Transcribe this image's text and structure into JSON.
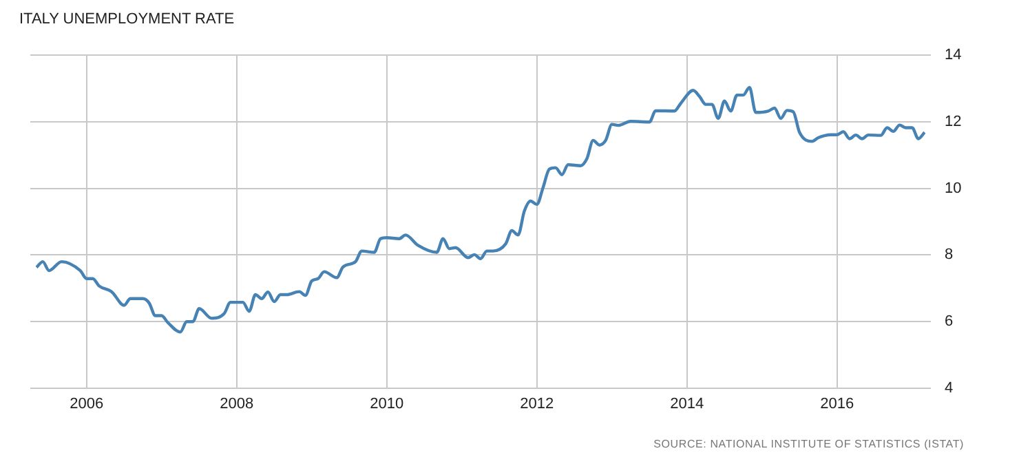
{
  "chart_data": {
    "type": "line",
    "title": "ITALY UNEMPLOYMENT RATE",
    "annotations": [
      "SOURCE: NATIONAL INSTITUTE OF STATISTICS (ISTAT)"
    ],
    "x": [
      "2005-05",
      "2005-06",
      "2005-07",
      "2005-09",
      "2005-12",
      "2006-01",
      "2006-02",
      "2006-03",
      "2006-05",
      "2006-07",
      "2006-08",
      "2006-10",
      "2006-11",
      "2006-12",
      "2007-01",
      "2007-02",
      "2007-04",
      "2007-05",
      "2007-06",
      "2007-07",
      "2007-09",
      "2007-11",
      "2007-12",
      "2008-02",
      "2008-03",
      "2008-04",
      "2008-05",
      "2008-06",
      "2008-07",
      "2008-08",
      "2008-09",
      "2008-11",
      "2008-12",
      "2009-01",
      "2009-02",
      "2009-03",
      "2009-05",
      "2009-06",
      "2009-08",
      "2009-09",
      "2009-11",
      "2009-12",
      "2010-01",
      "2010-03",
      "2010-04",
      "2010-06",
      "2010-09",
      "2010-10",
      "2010-11",
      "2010-12",
      "2011-02",
      "2011-03",
      "2011-04",
      "2011-05",
      "2011-06",
      "2011-08",
      "2011-09",
      "2011-10",
      "2011-11",
      "2011-12",
      "2012-01",
      "2012-02",
      "2012-03",
      "2012-04",
      "2012-05",
      "2012-06",
      "2012-08",
      "2012-09",
      "2012-10",
      "2012-11",
      "2012-12",
      "2013-01",
      "2013-02",
      "2013-04",
      "2013-07",
      "2013-08",
      "2013-11",
      "2013-12",
      "2014-02",
      "2014-03",
      "2014-04",
      "2014-05",
      "2014-06",
      "2014-07",
      "2014-08",
      "2014-09",
      "2014-10",
      "2014-11",
      "2014-12",
      "2015-02",
      "2015-03",
      "2015-04",
      "2015-05",
      "2015-06",
      "2015-07",
      "2015-09",
      "2015-10",
      "2015-12",
      "2016-01",
      "2016-02",
      "2016-03",
      "2016-04",
      "2016-05",
      "2016-06",
      "2016-08",
      "2016-09",
      "2016-10",
      "2016-11",
      "2016-12",
      "2017-01",
      "2017-02",
      "2017-03"
    ],
    "values": [
      7.63,
      7.8,
      7.53,
      7.8,
      7.53,
      7.29,
      7.29,
      7.07,
      6.9,
      6.49,
      6.69,
      6.69,
      6.56,
      6.18,
      6.18,
      5.97,
      5.69,
      6.0,
      6.0,
      6.39,
      6.1,
      6.24,
      6.58,
      6.58,
      6.31,
      6.81,
      6.69,
      6.89,
      6.6,
      6.81,
      6.81,
      6.9,
      6.79,
      7.22,
      7.29,
      7.5,
      7.32,
      7.64,
      7.8,
      8.12,
      8.08,
      8.49,
      8.52,
      8.49,
      8.6,
      8.29,
      8.08,
      8.49,
      8.19,
      8.22,
      7.92,
      8.01,
      7.89,
      8.12,
      8.12,
      8.33,
      8.73,
      8.6,
      9.32,
      9.62,
      9.52,
      10.03,
      10.58,
      10.62,
      10.41,
      10.71,
      10.68,
      10.89,
      11.44,
      11.3,
      11.44,
      11.92,
      11.89,
      12.01,
      11.99,
      12.33,
      12.32,
      12.55,
      12.94,
      12.76,
      12.52,
      12.52,
      12.1,
      12.62,
      12.32,
      12.8,
      12.8,
      13.03,
      12.28,
      12.32,
      12.41,
      12.1,
      12.34,
      12.3,
      11.68,
      11.41,
      11.52,
      11.61,
      11.61,
      11.7,
      11.49,
      11.6,
      11.49,
      11.6,
      11.59,
      11.82,
      11.71,
      11.9,
      11.82,
      11.82,
      11.49,
      11.68
    ],
    "color": "#4682b4",
    "xlim": [
      "2005-04",
      "2017-04"
    ],
    "xticks": [
      "2006",
      "2008",
      "2010",
      "2012",
      "2014",
      "2016"
    ],
    "ylim": [
      4,
      14
    ],
    "yticks": [
      4,
      6,
      8,
      10,
      12,
      14
    ],
    "grid": true
  }
}
